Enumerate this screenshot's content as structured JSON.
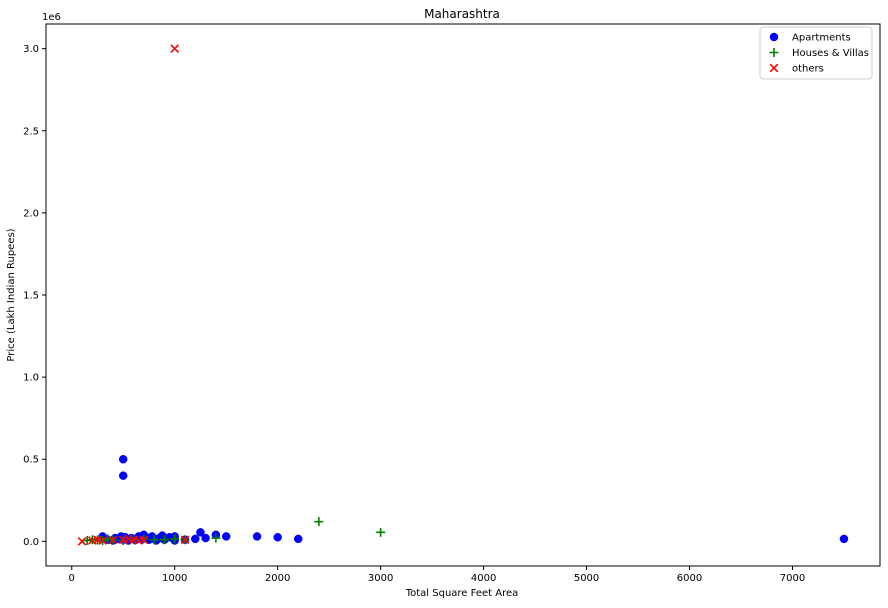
{
  "chart_data": {
    "type": "scatter",
    "title": "Maharashtra",
    "xlabel": "Total Square Feet Area",
    "ylabel": "Price (Lakh Indian Rupees)",
    "y_offset_label": "1e6",
    "xlim": [
      -250,
      7850
    ],
    "ylim": [
      -150000,
      3150000
    ],
    "x_ticks": [
      0,
      1000,
      2000,
      3000,
      4000,
      5000,
      6000,
      7000
    ],
    "y_ticks": [
      0,
      500000,
      1000000,
      1500000,
      2000000,
      2500000,
      3000000
    ],
    "y_tick_labels": [
      "0.0",
      "0.5",
      "1.0",
      "1.5",
      "2.0",
      "2.5",
      "3.0"
    ],
    "legend_position": "top-right",
    "series": [
      {
        "name": "Apartments",
        "marker": "circle",
        "color": "#0000ff",
        "points": [
          [
            300,
            30000
          ],
          [
            350,
            10000
          ],
          [
            400,
            5000
          ],
          [
            420,
            20000
          ],
          [
            450,
            15000
          ],
          [
            480,
            30000
          ],
          [
            500,
            10000
          ],
          [
            500,
            400000
          ],
          [
            500,
            500000
          ],
          [
            520,
            25000
          ],
          [
            550,
            5000
          ],
          [
            580,
            20000
          ],
          [
            600,
            15000
          ],
          [
            620,
            8000
          ],
          [
            650,
            30000
          ],
          [
            680,
            12000
          ],
          [
            700,
            40000
          ],
          [
            720,
            25000
          ],
          [
            750,
            10000
          ],
          [
            780,
            30000
          ],
          [
            800,
            15000
          ],
          [
            820,
            5000
          ],
          [
            850,
            20000
          ],
          [
            880,
            35000
          ],
          [
            900,
            10000
          ],
          [
            950,
            25000
          ],
          [
            1000,
            30000
          ],
          [
            1000,
            5000
          ],
          [
            1100,
            10000
          ],
          [
            1200,
            15000
          ],
          [
            1250,
            55000
          ],
          [
            1300,
            20000
          ],
          [
            1400,
            40000
          ],
          [
            1500,
            30000
          ],
          [
            1800,
            30000
          ],
          [
            2000,
            25000
          ],
          [
            2200,
            15000
          ],
          [
            7500,
            15000
          ]
        ]
      },
      {
        "name": "Houses & Villas",
        "marker": "plus",
        "color": "#008000",
        "points": [
          [
            150,
            5000
          ],
          [
            200,
            10000
          ],
          [
            250,
            8000
          ],
          [
            300,
            5000
          ],
          [
            350,
            15000
          ],
          [
            400,
            10000
          ],
          [
            500,
            5000
          ],
          [
            600,
            10000
          ],
          [
            700,
            15000
          ],
          [
            800,
            10000
          ],
          [
            900,
            10000
          ],
          [
            1000,
            15000
          ],
          [
            1100,
            10000
          ],
          [
            1400,
            20000
          ],
          [
            2400,
            120000
          ],
          [
            3000,
            55000
          ]
        ]
      },
      {
        "name": "others",
        "marker": "x",
        "color": "#ff0000",
        "points": [
          [
            100,
            0
          ],
          [
            200,
            5000
          ],
          [
            250,
            10000
          ],
          [
            300,
            5000
          ],
          [
            400,
            8000
          ],
          [
            500,
            10000
          ],
          [
            550,
            15000
          ],
          [
            600,
            10000
          ],
          [
            650,
            5000
          ],
          [
            700,
            10000
          ],
          [
            1000,
            3000000
          ],
          [
            1100,
            10000
          ]
        ]
      }
    ]
  }
}
